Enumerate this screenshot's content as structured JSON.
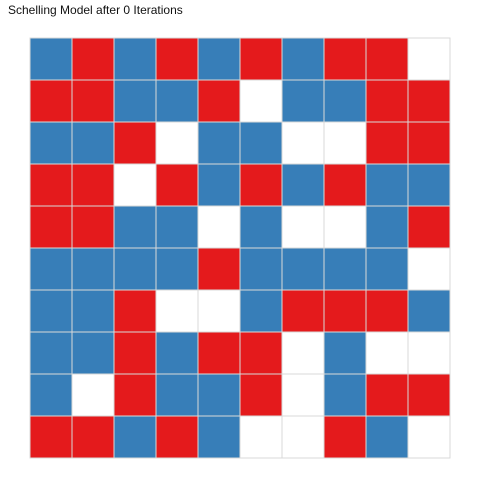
{
  "chart_data": {
    "type": "heatmap",
    "title": "Schelling Model after 0 Iterations",
    "rows": 10,
    "cols": 10,
    "legend": "none",
    "grid": true,
    "colors": {
      "red": "#e41a1c",
      "blue": "#377eb8",
      "empty": "#ffffff",
      "gridline": "#d9d9d9"
    },
    "cells": [
      [
        "blue",
        "red",
        "blue",
        "red",
        "blue",
        "red",
        "blue",
        "red",
        "red",
        "empty"
      ],
      [
        "red",
        "red",
        "blue",
        "blue",
        "red",
        "empty",
        "blue",
        "blue",
        "red",
        "red"
      ],
      [
        "blue",
        "blue",
        "red",
        "empty",
        "blue",
        "blue",
        "empty",
        "empty",
        "red",
        "red"
      ],
      [
        "red",
        "red",
        "empty",
        "red",
        "blue",
        "red",
        "blue",
        "red",
        "blue",
        "blue"
      ],
      [
        "red",
        "red",
        "blue",
        "blue",
        "empty",
        "blue",
        "empty",
        "empty",
        "blue",
        "red"
      ],
      [
        "blue",
        "blue",
        "blue",
        "blue",
        "red",
        "blue",
        "blue",
        "blue",
        "blue",
        "empty"
      ],
      [
        "blue",
        "blue",
        "red",
        "empty",
        "empty",
        "blue",
        "red",
        "red",
        "red",
        "blue"
      ],
      [
        "blue",
        "blue",
        "red",
        "blue",
        "red",
        "red",
        "empty",
        "blue",
        "empty",
        "empty"
      ],
      [
        "blue",
        "empty",
        "red",
        "blue",
        "blue",
        "red",
        "empty",
        "blue",
        "red",
        "red"
      ],
      [
        "red",
        "red",
        "blue",
        "red",
        "blue",
        "empty",
        "empty",
        "red",
        "blue",
        "empty"
      ]
    ]
  }
}
